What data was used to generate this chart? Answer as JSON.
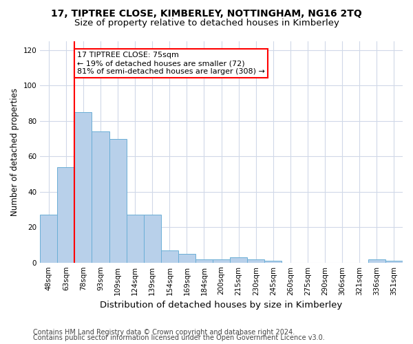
{
  "title": "17, TIPTREE CLOSE, KIMBERLEY, NOTTINGHAM, NG16 2TQ",
  "subtitle": "Size of property relative to detached houses in Kimberley",
  "xlabel": "Distribution of detached houses by size in Kimberley",
  "ylabel": "Number of detached properties",
  "categories": [
    "48sqm",
    "63sqm",
    "78sqm",
    "93sqm",
    "109sqm",
    "124sqm",
    "139sqm",
    "154sqm",
    "169sqm",
    "184sqm",
    "200sqm",
    "215sqm",
    "230sqm",
    "245sqm",
    "260sqm",
    "275sqm",
    "290sqm",
    "306sqm",
    "321sqm",
    "336sqm",
    "351sqm"
  ],
  "values": [
    27,
    54,
    85,
    74,
    70,
    27,
    27,
    7,
    5,
    2,
    2,
    3,
    2,
    1,
    0,
    0,
    0,
    0,
    0,
    2,
    1
  ],
  "bar_color": "#b8d0ea",
  "bar_edge_color": "#6aaed6",
  "grid_color": "#d0d8e8",
  "property_line_x": 2.0,
  "property_line_label": "17 TIPTREE CLOSE: 75sqm",
  "annotation_line1": "← 19% of detached houses are smaller (72)",
  "annotation_line2": "81% of semi-detached houses are larger (308) →",
  "annotation_box_color": "white",
  "annotation_box_edge_color": "red",
  "vline_color": "red",
  "ylim": [
    0,
    125
  ],
  "yticks": [
    0,
    20,
    40,
    60,
    80,
    100,
    120
  ],
  "footer_line1": "Contains HM Land Registry data © Crown copyright and database right 2024.",
  "footer_line2": "Contains public sector information licensed under the Open Government Licence v3.0.",
  "title_fontsize": 10,
  "subtitle_fontsize": 9.5,
  "xlabel_fontsize": 9.5,
  "ylabel_fontsize": 8.5,
  "footer_fontsize": 7,
  "annotation_fontsize": 8,
  "tick_fontsize": 7.5
}
